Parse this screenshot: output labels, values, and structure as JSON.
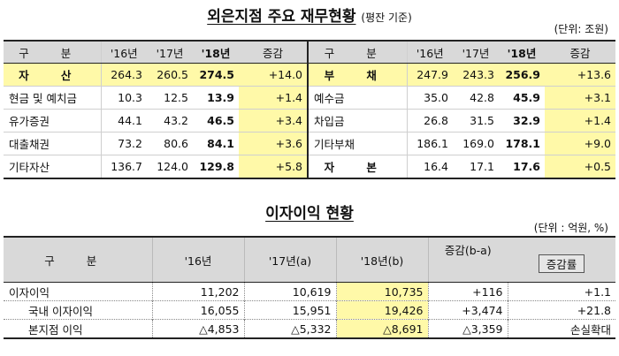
{
  "title1": "외은지점 주요 재무현황",
  "title1_sub": "(평잔 기준)",
  "unit1": "(단위: 조원)",
  "table1": {
    "header": [
      "구 분",
      "'16년",
      "'17년",
      "'18년",
      "증감",
      "구 분",
      "'16년",
      "'17년",
      "'18년",
      "증감"
    ],
    "left": [
      {
        "label": "자 산",
        "v16": "264.3",
        "v17": "260.5",
        "v18": "274.5",
        "chg": "+14.0"
      },
      {
        "label": "현금 및 예치금",
        "v16": "10.3",
        "v17": "12.5",
        "v18": "13.9",
        "chg": "+1.4"
      },
      {
        "label": "유가증권",
        "v16": "44.1",
        "v17": "43.2",
        "v18": "46.5",
        "chg": "+3.4"
      },
      {
        "label": "대출채권",
        "v16": "73.2",
        "v17": "80.6",
        "v18": "84.1",
        "chg": "+3.6"
      },
      {
        "label": "기타자산",
        "v16": "136.7",
        "v17": "124.0",
        "v18": "129.8",
        "chg": "+5.8"
      }
    ],
    "right": [
      {
        "label": "부 채",
        "v16": "247.9",
        "v17": "243.3",
        "v18": "256.9",
        "chg": "+13.6"
      },
      {
        "label": "예수금",
        "v16": "35.0",
        "v17": "42.8",
        "v18": "45.9",
        "chg": "+3.1"
      },
      {
        "label": "차입금",
        "v16": "26.8",
        "v17": "31.5",
        "v18": "32.9",
        "chg": "+1.4"
      },
      {
        "label": "기타부채",
        "v16": "186.1",
        "v17": "169.0",
        "v18": "178.1",
        "chg": "+9.0"
      },
      {
        "label": "자 본",
        "v16": "16.4",
        "v17": "17.1",
        "v18": "17.6",
        "chg": "+0.5"
      }
    ]
  },
  "title2": "이자이익 현황",
  "unit2": "(단위 : 억원, %)",
  "table2": {
    "header": {
      "label": "구 분",
      "c1": "'16년",
      "c2": "'17년(a)",
      "c3": "'18년(b)",
      "c4": "증감(b-a)",
      "c5": "증감률"
    },
    "rows": [
      {
        "label": "이자이익",
        "c1": "11,202",
        "c2": "10,619",
        "c3": "10,735",
        "c4": "+116",
        "c5": "+1.1"
      },
      {
        "label": "국내 이자이익",
        "c1": "16,055",
        "c2": "15,951",
        "c3": "19,426",
        "c4": "+3,474",
        "c5": "+21.8"
      },
      {
        "label": "본지점 이익",
        "c1": "△4,853",
        "c2": "△5,332",
        "c3": "△8,691",
        "c4": "△3,359",
        "c5": "손실확대"
      }
    ]
  }
}
